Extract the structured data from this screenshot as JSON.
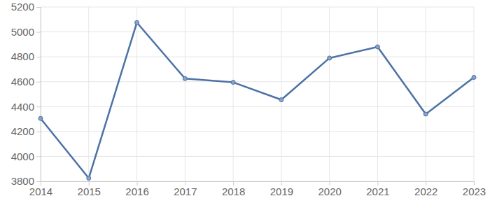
{
  "chart_data": {
    "type": "line",
    "x": [
      2014,
      2015,
      2016,
      2017,
      2018,
      2019,
      2020,
      2021,
      2022,
      2023
    ],
    "values": [
      4305,
      3825,
      5075,
      4625,
      4595,
      4455,
      4790,
      4880,
      4340,
      4635
    ],
    "color": "#4c72a4",
    "marker": "circle",
    "xlim": [
      2014,
      2023
    ],
    "xticks": [
      2014,
      2015,
      2016,
      2017,
      2018,
      2019,
      2020,
      2021,
      2022,
      2023
    ],
    "ylim": [
      3800,
      5200
    ],
    "yticks": [
      3800,
      4000,
      4200,
      4400,
      4600,
      4800,
      5000,
      5200
    ],
    "grid": true
  }
}
